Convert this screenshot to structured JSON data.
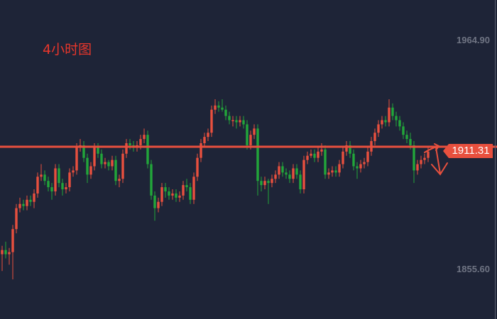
{
  "chart_data": {
    "type": "candlestick",
    "title": "4小时图",
    "y_tick_labels": [
      "1964.90",
      "1855.60"
    ],
    "ylim": [
      1840,
      1985
    ],
    "grid": false,
    "up_color": "#e8503e",
    "down_color": "#22a63a",
    "line_color": "#e8503e",
    "horizontal_line": {
      "value": 1911.31,
      "label": "1911.31"
    },
    "annotation": "hand-drawn-down-arrow",
    "ohlc": [
      [
        1860,
        1864,
        1852,
        1862
      ],
      [
        1862,
        1866,
        1858,
        1860
      ],
      [
        1860,
        1863,
        1855,
        1861
      ],
      [
        1861,
        1874,
        1848,
        1872
      ],
      [
        1872,
        1884,
        1870,
        1882
      ],
      [
        1882,
        1887,
        1880,
        1884
      ],
      [
        1884,
        1886,
        1881,
        1883
      ],
      [
        1883,
        1888,
        1881,
        1886
      ],
      [
        1886,
        1888,
        1883,
        1885
      ],
      [
        1885,
        1891,
        1882,
        1889
      ],
      [
        1889,
        1899,
        1887,
        1897
      ],
      [
        1897,
        1903,
        1895,
        1898
      ],
      [
        1898,
        1900,
        1893,
        1895
      ],
      [
        1895,
        1897,
        1890,
        1892
      ],
      [
        1892,
        1894,
        1886,
        1890
      ],
      [
        1890,
        1903,
        1888,
        1901
      ],
      [
        1901,
        1903,
        1892,
        1894
      ],
      [
        1894,
        1896,
        1888,
        1891
      ],
      [
        1891,
        1894,
        1889,
        1892
      ],
      [
        1892,
        1901,
        1890,
        1899
      ],
      [
        1899,
        1902,
        1897,
        1900
      ],
      [
        1900,
        1913,
        1898,
        1911
      ],
      [
        1911,
        1915,
        1909,
        1912
      ],
      [
        1912,
        1914,
        1904,
        1906
      ],
      [
        1906,
        1908,
        1894,
        1898
      ],
      [
        1898,
        1904,
        1896,
        1902
      ],
      [
        1902,
        1913,
        1900,
        1911
      ],
      [
        1911,
        1913,
        1906,
        1908
      ],
      [
        1908,
        1910,
        1901,
        1903
      ],
      [
        1903,
        1906,
        1901,
        1904
      ],
      [
        1904,
        1905,
        1900,
        1902
      ],
      [
        1902,
        1907,
        1900,
        1905
      ],
      [
        1905,
        1907,
        1893,
        1895
      ],
      [
        1895,
        1898,
        1892,
        1896
      ],
      [
        1896,
        1910,
        1894,
        1908
      ],
      [
        1908,
        1915,
        1906,
        1913
      ],
      [
        1913,
        1915,
        1910,
        1912
      ],
      [
        1912,
        1914,
        1909,
        1911
      ],
      [
        1911,
        1914,
        1909,
        1912
      ],
      [
        1912,
        1917,
        1910,
        1915
      ],
      [
        1915,
        1920,
        1913,
        1917
      ],
      [
        1917,
        1919,
        1901,
        1903
      ],
      [
        1903,
        1905,
        1886,
        1888
      ],
      [
        1888,
        1890,
        1876,
        1882
      ],
      [
        1882,
        1887,
        1880,
        1885
      ],
      [
        1885,
        1894,
        1883,
        1892
      ],
      [
        1892,
        1894,
        1887,
        1890
      ],
      [
        1890,
        1892,
        1886,
        1888
      ],
      [
        1888,
        1891,
        1886,
        1889
      ],
      [
        1889,
        1891,
        1885,
        1887
      ],
      [
        1887,
        1890,
        1885,
        1888
      ],
      [
        1888,
        1895,
        1886,
        1893
      ],
      [
        1893,
        1896,
        1890,
        1892
      ],
      [
        1892,
        1894,
        1884,
        1886
      ],
      [
        1886,
        1899,
        1884,
        1897
      ],
      [
        1897,
        1908,
        1895,
        1906
      ],
      [
        1906,
        1915,
        1904,
        1913
      ],
      [
        1913,
        1918,
        1911,
        1916
      ],
      [
        1916,
        1920,
        1914,
        1918
      ],
      [
        1918,
        1931,
        1916,
        1929
      ],
      [
        1929,
        1934,
        1927,
        1931
      ],
      [
        1931,
        1933,
        1928,
        1930
      ],
      [
        1930,
        1934,
        1928,
        1929
      ],
      [
        1929,
        1931,
        1924,
        1926
      ],
      [
        1926,
        1928,
        1922,
        1924
      ],
      [
        1924,
        1926,
        1921,
        1924
      ],
      [
        1924,
        1926,
        1920,
        1923
      ],
      [
        1923,
        1926,
        1921,
        1924
      ],
      [
        1924,
        1926,
        1920,
        1922
      ],
      [
        1922,
        1924,
        1910,
        1912
      ],
      [
        1912,
        1919,
        1910,
        1917
      ],
      [
        1917,
        1922,
        1915,
        1920
      ],
      [
        1920,
        1922,
        1888,
        1895
      ],
      [
        1895,
        1897,
        1890,
        1893
      ],
      [
        1893,
        1897,
        1891,
        1895
      ],
      [
        1895,
        1896,
        1884,
        1894
      ],
      [
        1894,
        1898,
        1892,
        1896
      ],
      [
        1896,
        1900,
        1894,
        1898
      ],
      [
        1898,
        1904,
        1896,
        1902
      ],
      [
        1902,
        1904,
        1897,
        1899
      ],
      [
        1899,
        1901,
        1896,
        1898
      ],
      [
        1898,
        1900,
        1894,
        1896
      ],
      [
        1896,
        1903,
        1894,
        1901
      ],
      [
        1901,
        1903,
        1896,
        1898
      ],
      [
        1898,
        1900,
        1889,
        1891
      ],
      [
        1891,
        1907,
        1889,
        1905
      ],
      [
        1905,
        1909,
        1903,
        1907
      ],
      [
        1907,
        1910,
        1906,
        1908
      ],
      [
        1908,
        1910,
        1904,
        1906
      ],
      [
        1906,
        1911,
        1904,
        1909
      ],
      [
        1909,
        1913,
        1907,
        1910
      ],
      [
        1910,
        1912,
        1896,
        1898
      ],
      [
        1898,
        1901,
        1896,
        1899
      ],
      [
        1899,
        1902,
        1897,
        1900
      ],
      [
        1900,
        1902,
        1897,
        1899
      ],
      [
        1899,
        1905,
        1897,
        1903
      ],
      [
        1903,
        1911,
        1901,
        1909
      ],
      [
        1909,
        1914,
        1907,
        1912
      ],
      [
        1912,
        1914,
        1906,
        1908
      ],
      [
        1908,
        1910,
        1900,
        1902
      ],
      [
        1902,
        1904,
        1896,
        1901
      ],
      [
        1901,
        1905,
        1899,
        1903
      ],
      [
        1903,
        1906,
        1901,
        1904
      ],
      [
        1904,
        1911,
        1902,
        1909
      ],
      [
        1909,
        1916,
        1907,
        1914
      ],
      [
        1914,
        1920,
        1912,
        1918
      ],
      [
        1918,
        1924,
        1916,
        1922
      ],
      [
        1922,
        1926,
        1920,
        1924
      ],
      [
        1924,
        1926,
        1921,
        1923
      ],
      [
        1923,
        1934,
        1921,
        1930
      ],
      [
        1930,
        1932,
        1924,
        1926
      ],
      [
        1926,
        1928,
        1921,
        1924
      ],
      [
        1924,
        1926,
        1919,
        1921
      ],
      [
        1921,
        1923,
        1915,
        1917
      ],
      [
        1917,
        1919,
        1913,
        1915
      ],
      [
        1915,
        1918,
        1910,
        1912
      ],
      [
        1912,
        1914,
        1894,
        1900
      ],
      [
        1900,
        1905,
        1898,
        1903
      ],
      [
        1903,
        1907,
        1901,
        1905
      ],
      [
        1905,
        1908,
        1903,
        1906
      ],
      [
        1906,
        1911,
        1904,
        1909
      ]
    ]
  }
}
